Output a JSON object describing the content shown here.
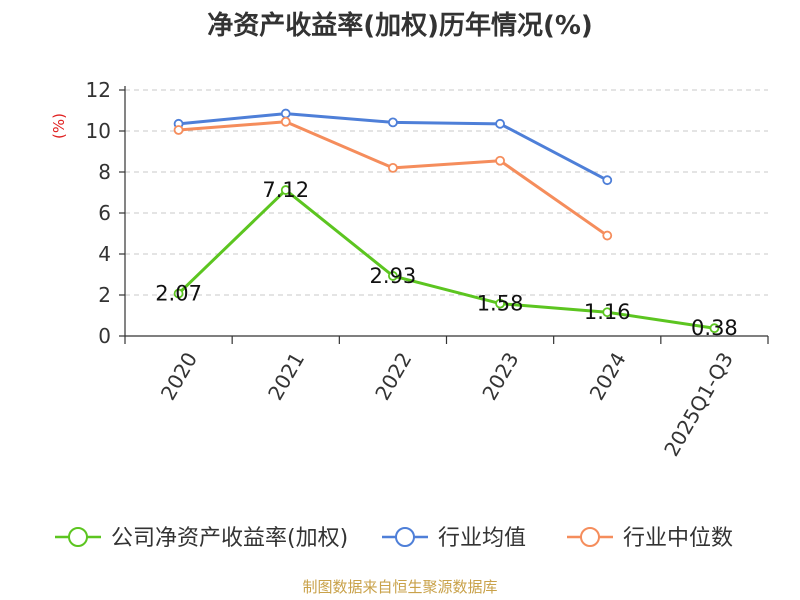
{
  "chart_data": {
    "type": "line",
    "title": "净资产收益率(加权)历年情况(%)",
    "ylabel": "(%)",
    "xlabel": "",
    "categories": [
      "2020",
      "2021",
      "2022",
      "2023",
      "2024",
      "2025Q1-Q3"
    ],
    "yticks": [
      "0",
      "2",
      "4",
      "6",
      "8",
      "10",
      "12"
    ],
    "ylim": [
      0,
      12
    ],
    "grid": true,
    "legend_position": "bottom",
    "series": [
      {
        "name": "公司净资产收益率(加权)",
        "color": "#5cc520",
        "values": [
          2.07,
          7.12,
          2.93,
          1.58,
          1.16,
          0.38
        ],
        "labels": [
          "2.07",
          "7.12",
          "2.93",
          "1.58",
          "1.16",
          "0.38"
        ]
      },
      {
        "name": "行业均值",
        "color": "#4e7fd8",
        "values": [
          10.35,
          10.85,
          10.42,
          10.35,
          7.6,
          null
        ]
      },
      {
        "name": "行业中位数",
        "color": "#f58d5c",
        "values": [
          10.05,
          10.45,
          8.2,
          8.55,
          4.9,
          null
        ]
      }
    ]
  },
  "source": {
    "text": "制图数据来自恒生聚源数据库",
    "color": "#c9a24a"
  },
  "ylabel_color": "#e02020"
}
